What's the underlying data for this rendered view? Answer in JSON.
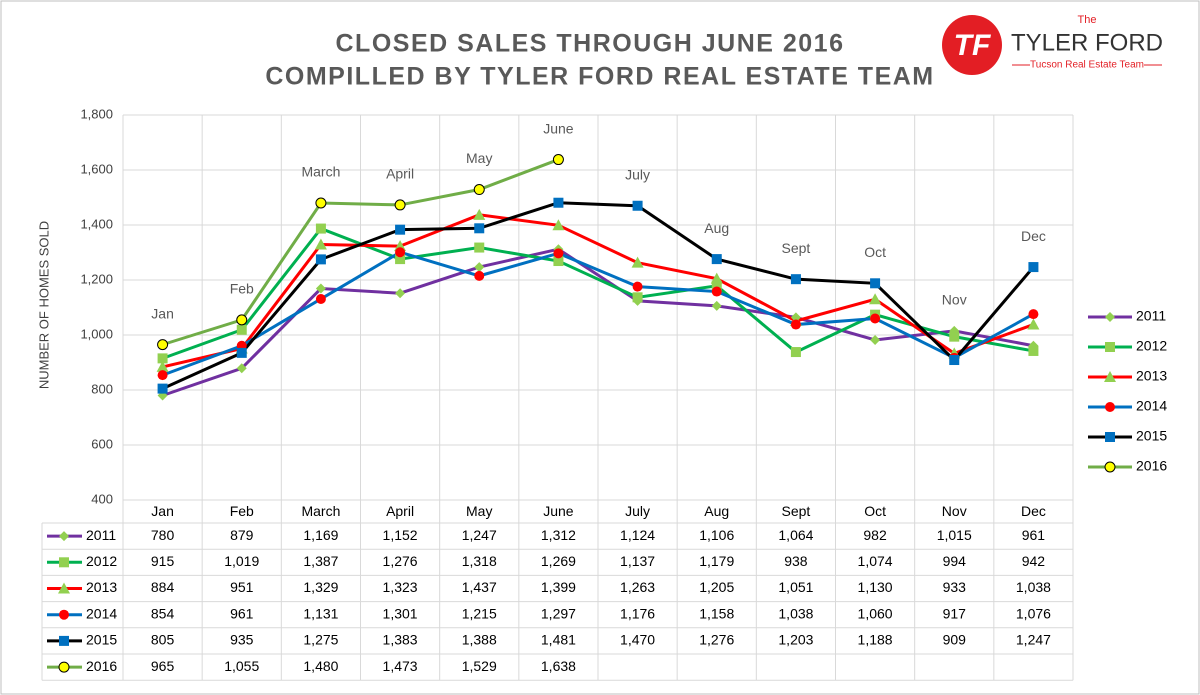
{
  "chart_data": {
    "type": "line",
    "title": [
      "CLOSED SALES THROUGH JUNE 2016",
      "COMPILLED BY TYLER FORD REAL ESTATE TEAM"
    ],
    "ylabel": "NUMBER OF HOMES SOLD",
    "categories": [
      "Jan",
      "Feb",
      "March",
      "April",
      "May",
      "June",
      "July",
      "Aug",
      "Sept",
      "Oct",
      "Nov",
      "Dec"
    ],
    "ylim": [
      400,
      1800
    ],
    "yticks": [
      {
        "value": 400,
        "label": "400"
      },
      {
        "value": 600,
        "label": "600"
      },
      {
        "value": 800,
        "label": "800"
      },
      {
        "value": 1000,
        "label": "1,000"
      },
      {
        "value": 1200,
        "label": "1,200"
      },
      {
        "value": 1400,
        "label": "1,400"
      },
      {
        "value": 1600,
        "label": "1,600"
      },
      {
        "value": 1800,
        "label": "1,800"
      }
    ],
    "grid": true,
    "legend": "right",
    "series": [
      {
        "name": "2011",
        "color": "#7030a0",
        "marker": "diamond",
        "marker_color": "#92d050",
        "values": [
          780,
          879,
          1169,
          1152,
          1247,
          1312,
          1124,
          1106,
          1064,
          982,
          1015,
          961
        ],
        "value_labels": [
          "780",
          "879",
          "1,169",
          "1,152",
          "1,247",
          "1,312",
          "1,124",
          "1,106",
          "1,064",
          "982",
          "1,015",
          "961"
        ]
      },
      {
        "name": "2012",
        "color": "#00b050",
        "marker": "square",
        "marker_color": "#92d050",
        "values": [
          915,
          1019,
          1387,
          1276,
          1318,
          1269,
          1137,
          1179,
          938,
          1074,
          994,
          942
        ],
        "value_labels": [
          "915",
          "1,019",
          "1,387",
          "1,276",
          "1,318",
          "1,269",
          "1,137",
          "1,179",
          "938",
          "1,074",
          "994",
          "942"
        ]
      },
      {
        "name": "2013",
        "color": "#ff0000",
        "marker": "triangle",
        "marker_color": "#92d050",
        "values": [
          884,
          951,
          1329,
          1323,
          1437,
          1399,
          1263,
          1205,
          1051,
          1130,
          933,
          1038
        ],
        "value_labels": [
          "884",
          "951",
          "1,329",
          "1,323",
          "1,437",
          "1,399",
          "1,263",
          "1,205",
          "1,051",
          "1,130",
          "933",
          "1,038"
        ]
      },
      {
        "name": "2014",
        "color": "#0070c0",
        "marker": "circle",
        "marker_color": "#ff0000",
        "values": [
          854,
          961,
          1131,
          1301,
          1215,
          1297,
          1176,
          1158,
          1038,
          1060,
          917,
          1076
        ],
        "value_labels": [
          "854",
          "961",
          "1,131",
          "1,301",
          "1,215",
          "1,297",
          "1,176",
          "1,158",
          "1,038",
          "1,060",
          "917",
          "1,076"
        ]
      },
      {
        "name": "2015",
        "color": "#000000",
        "marker": "square",
        "marker_color": "#0070c0",
        "values": [
          805,
          935,
          1275,
          1383,
          1388,
          1481,
          1470,
          1276,
          1203,
          1188,
          909,
          1247
        ],
        "value_labels": [
          "805",
          "935",
          "1,275",
          "1,383",
          "1,388",
          "1,481",
          "1,470",
          "1,276",
          "1,203",
          "1,188",
          "909",
          "1,247"
        ]
      },
      {
        "name": "2016",
        "color": "#70ad47",
        "marker": "circle",
        "marker_color": "#ffff00",
        "values": [
          965,
          1055,
          1480,
          1473,
          1529,
          1638,
          null,
          null,
          null,
          null,
          null,
          null
        ],
        "value_labels": [
          "965",
          "1,055",
          "1,480",
          "1,473",
          "1,529",
          "1,638",
          null,
          null,
          null,
          null,
          null,
          null
        ]
      }
    ]
  },
  "logo": {
    "initials": "TF",
    "the": "The",
    "name": "TYLER FORD",
    "tagline": "Tucson Real Estate Team"
  }
}
